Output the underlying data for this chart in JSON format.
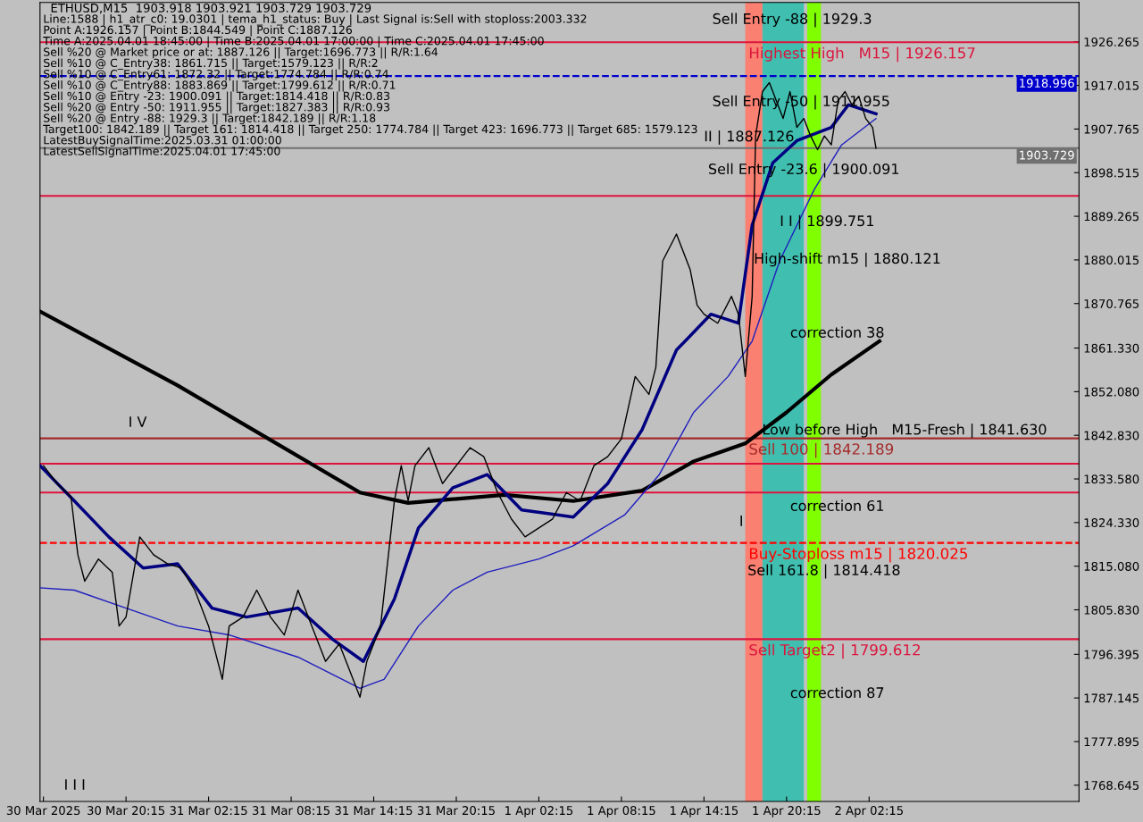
{
  "chart_data": {
    "type": "line",
    "title": "ETHUSD,M15  1903.918 1903.921 1903.729 1903.729",
    "series": [
      {
        "color": "#000000",
        "x": [
          "2025-03-30T14:15",
          "2025-03-30T15:15",
          "2025-03-30T16:15",
          "2025-03-30T16:45",
          "2025-03-30T17:15",
          "2025-03-30T18:15",
          "2025-03-30T19:15",
          "2025-03-30T19:45",
          "2025-03-30T20:15",
          "2025-03-30T21:15",
          "2025-03-30T22:15",
          "2025-03-30T23:15",
          "2025-03-31T00:15",
          "2025-03-31T01:15",
          "2025-03-31T02:15",
          "2025-03-31T03:15",
          "2025-03-31T03:45",
          "2025-03-31T04:45",
          "2025-03-31T05:45",
          "2025-03-31T06:45",
          "2025-03-31T07:45",
          "2025-03-31T08:45",
          "2025-03-31T09:45",
          "2025-03-31T10:45",
          "2025-03-31T11:45",
          "2025-03-31T12:45",
          "2025-03-31T13:15",
          "2025-03-31T13:45",
          "2025-03-31T14:45",
          "2025-03-31T15:45",
          "2025-03-31T16:15",
          "2025-03-31T16:45",
          "2025-03-31T17:15",
          "2025-03-31T18:15",
          "2025-03-31T19:15",
          "2025-03-31T20:15",
          "2025-03-31T21:15",
          "2025-03-31T22:15",
          "2025-03-31T23:15",
          "2025-04-01T00:15",
          "2025-04-01T01:15",
          "2025-04-01T02:15",
          "2025-04-01T03:15",
          "2025-04-01T04:15",
          "2025-04-01T05:15",
          "2025-04-01T06:15",
          "2025-04-01T07:15",
          "2025-04-01T08:15",
          "2025-04-01T09:15",
          "2025-04-01T10:15",
          "2025-04-01T10:45",
          "2025-04-01T11:15",
          "2025-04-01T12:15",
          "2025-04-01T13:15",
          "2025-04-01T13:45",
          "2025-04-01T14:15",
          "2025-04-01T15:15",
          "2025-04-01T16:15",
          "2025-04-01T16:45",
          "2025-04-01T17:15",
          "2025-04-01T17:45",
          "2025-04-01T18:00",
          "2025-04-01T18:30",
          "2025-04-01T19:00",
          "2025-04-01T19:30",
          "2025-04-01T20:00",
          "2025-04-01T20:30",
          "2025-04-01T21:00",
          "2025-04-01T21:30",
          "2025-04-01T22:00",
          "2025-04-01T22:30",
          "2025-04-01T23:00",
          "2025-04-01T23:30",
          "2025-04-02T00:00",
          "2025-04-02T00:30",
          "2025-04-02T01:00",
          "2025-04-02T01:30",
          "2025-04-02T02:00",
          "2025-04-02T02:30",
          "2025-04-02T02:45"
        ],
        "values": [
          1836.4,
          1832.6,
          1829.8,
          1817.5,
          1811.9,
          1816.6,
          1813.8,
          1802.4,
          1804.3,
          1821.3,
          1817.5,
          1815.6,
          1814.7,
          1810.0,
          1802.4,
          1791.1,
          1802.4,
          1804.3,
          1810.0,
          1804.3,
          1800.5,
          1810.0,
          1802.4,
          1794.9,
          1798.6,
          1791.1,
          1787.3,
          1794.9,
          1802.4,
          1828.9,
          1836.4,
          1828.9,
          1836.4,
          1840.2,
          1832.6,
          1836.4,
          1840.2,
          1838.3,
          1830.7,
          1825.1,
          1821.3,
          1823.2,
          1825.1,
          1830.7,
          1828.9,
          1836.4,
          1838.3,
          1842.1,
          1855.3,
          1851.5,
          1857.2,
          1879.8,
          1885.5,
          1877.9,
          1870.4,
          1868.5,
          1866.6,
          1872.3,
          1868.5,
          1855.3,
          1872.3,
          1906.3,
          1915.7,
          1917.6,
          1913.8,
          1910.0,
          1915.7,
          1908.1,
          1910.0,
          1906.3,
          1903.4,
          1906.3,
          1904.4,
          1913.8,
          1915.7,
          1912.9,
          1914.7,
          1910.0,
          1908.1,
          1903.7
        ]
      },
      {
        "color": "#000000",
        "x": [
          "2025-03-30T14:00",
          "2025-03-31T00:00",
          "2025-03-31T13:15",
          "2025-03-31T16:45",
          "2025-03-31T23:45",
          "2025-04-01T04:45",
          "2025-04-01T09:45",
          "2025-04-01T13:30",
          "2025-04-01T17:15",
          "2025-04-01T20:15",
          "2025-04-01T23:30",
          "2025-04-02T03:00"
        ],
        "values": [
          1869.1,
          1853.4,
          1830.7,
          1828.5,
          1830.2,
          1828.9,
          1831.1,
          1837.3,
          1841.1,
          1847.7,
          1855.7,
          1862.8
        ]
      },
      {
        "color": "#000080",
        "x": [
          "2025-03-30T14:00",
          "2025-03-30T16:30",
          "2025-03-30T19:00",
          "2025-03-30T21:30",
          "2025-03-31T00:00",
          "2025-03-31T02:30",
          "2025-03-31T05:00",
          "2025-03-31T08:45",
          "2025-03-31T11:15",
          "2025-03-31T13:30",
          "2025-03-31T15:45",
          "2025-03-31T17:30",
          "2025-03-31T20:00",
          "2025-03-31T22:30",
          "2025-04-01T01:00",
          "2025-04-01T03:30",
          "2025-04-01T04:45",
          "2025-04-01T07:15",
          "2025-04-01T09:45",
          "2025-04-01T12:15",
          "2025-04-01T14:45",
          "2025-04-01T16:45",
          "2025-04-01T17:45",
          "2025-04-01T19:15",
          "2025-04-01T21:00",
          "2025-04-01T23:30",
          "2025-04-02T00:45",
          "2025-04-02T02:45"
        ],
        "values": [
          1836.4,
          1828.9,
          1821.3,
          1814.7,
          1815.6,
          1806.2,
          1804.3,
          1806.2,
          1799.6,
          1794.9,
          1808.1,
          1823.2,
          1831.7,
          1834.5,
          1827.0,
          1826.0,
          1825.5,
          1832.6,
          1844.0,
          1860.9,
          1868.5,
          1866.6,
          1887.4,
          1900.6,
          1905.3,
          1908.1,
          1912.9,
          1911.0
        ]
      },
      {
        "color": "#1e1ebe",
        "x": [
          "2025-03-30T14:00",
          "2025-03-30T16:30",
          "2025-03-30T20:15",
          "2025-03-31T00:00",
          "2025-03-31T03:45",
          "2025-03-31T08:45",
          "2025-03-31T13:15",
          "2025-03-31T15:00",
          "2025-03-31T17:30",
          "2025-03-31T20:00",
          "2025-03-31T22:30",
          "2025-04-01T02:15",
          "2025-04-01T04:45",
          "2025-04-01T08:30",
          "2025-04-01T11:00",
          "2025-04-01T13:30",
          "2025-04-01T16:00",
          "2025-04-01T17:45",
          "2025-04-01T19:45",
          "2025-04-01T22:15",
          "2025-04-02T00:15",
          "2025-04-02T02:45"
        ],
        "values": [
          1810.5,
          1810.0,
          1806.2,
          1802.4,
          1800.5,
          1795.8,
          1789.2,
          1791.1,
          1802.4,
          1810.0,
          1813.8,
          1816.6,
          1819.4,
          1826.0,
          1834.5,
          1847.7,
          1855.3,
          1862.8,
          1879.8,
          1894.9,
          1904.4,
          1910.0
        ]
      }
    ],
    "xlim": [
      "2025-03-30T14:00",
      "2025-04-02T17:30"
    ],
    "xticks": [
      {
        "value": "2025-03-30T14:15",
        "label": "30 Mar 2025"
      },
      {
        "value": "2025-03-30T20:15",
        "label": "30 Mar 20:15"
      },
      {
        "value": "2025-03-31T02:15",
        "label": "31 Mar 02:15"
      },
      {
        "value": "2025-03-31T08:15",
        "label": "31 Mar 08:15"
      },
      {
        "value": "2025-03-31T14:15",
        "label": "31 Mar 14:15"
      },
      {
        "value": "2025-03-31T20:15",
        "label": "31 Mar 20:15"
      },
      {
        "value": "2025-04-01T02:15",
        "label": "1 Apr 02:15"
      },
      {
        "value": "2025-04-01T08:15",
        "label": "1 Apr 08:15"
      },
      {
        "value": "2025-04-01T14:15",
        "label": "1 Apr 14:15"
      },
      {
        "value": "2025-04-01T20:15",
        "label": "1 Apr 20:15"
      },
      {
        "value": "2025-04-02T02:15",
        "label": "2 Apr 02:15"
      }
    ],
    "ylim": [
      1765.2,
      1934.6
    ],
    "yticks": [
      {
        "value": 1768.645,
        "label": "1768.645"
      },
      {
        "value": 1777.895,
        "label": "1777.895"
      },
      {
        "value": 1787.145,
        "label": "1787.145"
      },
      {
        "value": 1796.395,
        "label": "1796.395"
      },
      {
        "value": 1805.83,
        "label": "1805.830"
      },
      {
        "value": 1815.08,
        "label": "1815.080"
      },
      {
        "value": 1824.33,
        "label": "1824.330"
      },
      {
        "value": 1833.58,
        "label": "1833.580"
      },
      {
        "value": 1842.83,
        "label": "1842.830"
      },
      {
        "value": 1852.08,
        "label": "1852.080"
      },
      {
        "value": 1861.33,
        "label": "1861.330"
      },
      {
        "value": 1870.765,
        "label": "1870.765"
      },
      {
        "value": 1880.015,
        "label": "1880.015"
      },
      {
        "value": 1889.265,
        "label": "1889.265"
      },
      {
        "value": 1898.515,
        "label": "1898.515"
      },
      {
        "value": 1907.765,
        "label": "1907.765"
      },
      {
        "value": 1917.015,
        "label": "1917.015"
      },
      {
        "value": 1926.265,
        "label": "1926.265"
      }
    ],
    "grid": false,
    "bands": [
      {
        "axis": "x",
        "from": "2025-04-01T17:15",
        "to": "2025-04-01T18:30",
        "color": "#fa8072"
      },
      {
        "axis": "x",
        "from": "2025-04-01T18:30",
        "to": "2025-04-01T21:30",
        "color": "#40bfb0"
      },
      {
        "axis": "x",
        "from": "2025-04-01T21:45",
        "to": "2025-04-01T22:45",
        "color": "#80ff00"
      }
    ],
    "ref_lines": [
      {
        "axis": "y",
        "value": 1926.157,
        "label": "Highest High   M15 | 1926.157",
        "color": "#dc143c"
      },
      {
        "axis": "y",
        "value": 1918.996,
        "label": "1918.996",
        "color": "#0000cd",
        "line_style": "dashed"
      },
      {
        "axis": "y",
        "value": 1903.729,
        "label": "1903.729",
        "color": "#707070"
      },
      {
        "axis": "y",
        "value": 1893.6,
        "color": "#dc143c"
      },
      {
        "axis": "y",
        "value": 1842.189,
        "label": "Sell 100 | 1842.189",
        "color": "#a52a2a"
      },
      {
        "axis": "y",
        "value": 1836.8,
        "color": "#dc143c"
      },
      {
        "axis": "y",
        "value": 1830.7,
        "color": "#dc143c"
      },
      {
        "axis": "y",
        "value": 1820.025,
        "label": "Buy-Stoploss m15 | 1820.025",
        "color": "#ff0000",
        "line_style": "dashed"
      },
      {
        "axis": "y",
        "value": 1799.612,
        "label": "Sell Target2 | 1799.612",
        "color": "#dc143c"
      }
    ],
    "annotations": [
      "Line:1588 | h1_atr_c0: 19.0301 | tema_h1_status: Buy | Last Signal is:Sell with stoploss:2003.332",
      "Point A:1926.157 | Point B:1844.549 | Point C:1887.126",
      "Time A:2025.04.01 18:45:00 | Time B:2025.04.01 17:00:00 | Time C:2025.04.01 17:45:00",
      "Sell %20 @ Market price or at: 1887.126 || Target:1696.773 || R/R:1.64",
      "Sell %10 @ C_Entry38: 1861.715 || Target:1579.123 || R/R:2",
      "Sell %10 @ C_Entry61: 1872.32 || Target:1774.784 || R/R:0.74",
      "Sell %10 @ C_Entry88: 1883.869 || Target:1799.612 || R/R:0.71",
      "Sell %10 @ Entry -23: 1900.091 || Target:1814.418 || R/R:0.83",
      "Sell %20 @ Entry -50: 1911.955 || Target:1827.383 || R/R:0.93",
      "Sell %20 @ Entry -88: 1929.3 || Target:1842.189 || R/R:1.18",
      "Target100: 1842.189 || Target 161: 1814.418 || Target 250: 1774.784 || Target 423: 1696.773 || Target 685: 1579.123",
      "LatestBuySignalTime:2025.03.31 01:00:00",
      "LatestSellSignalTime:2025.04.01 17:45:00",
      "Sell Entry -88 | 1929.3",
      "Sell Entry -50 | 1911.955",
      "II | 1887.126",
      "Sell Entry -23.6 | 1900.091",
      "I I | 1899.751",
      "High-shift m15 | 1880.121",
      "Low before High   M15-Fresh | 1841.630",
      "Sell 161.8 | 1814.418",
      "correction 38",
      "correction 61",
      "correction 87",
      "I V",
      "I I I",
      "I"
    ]
  }
}
